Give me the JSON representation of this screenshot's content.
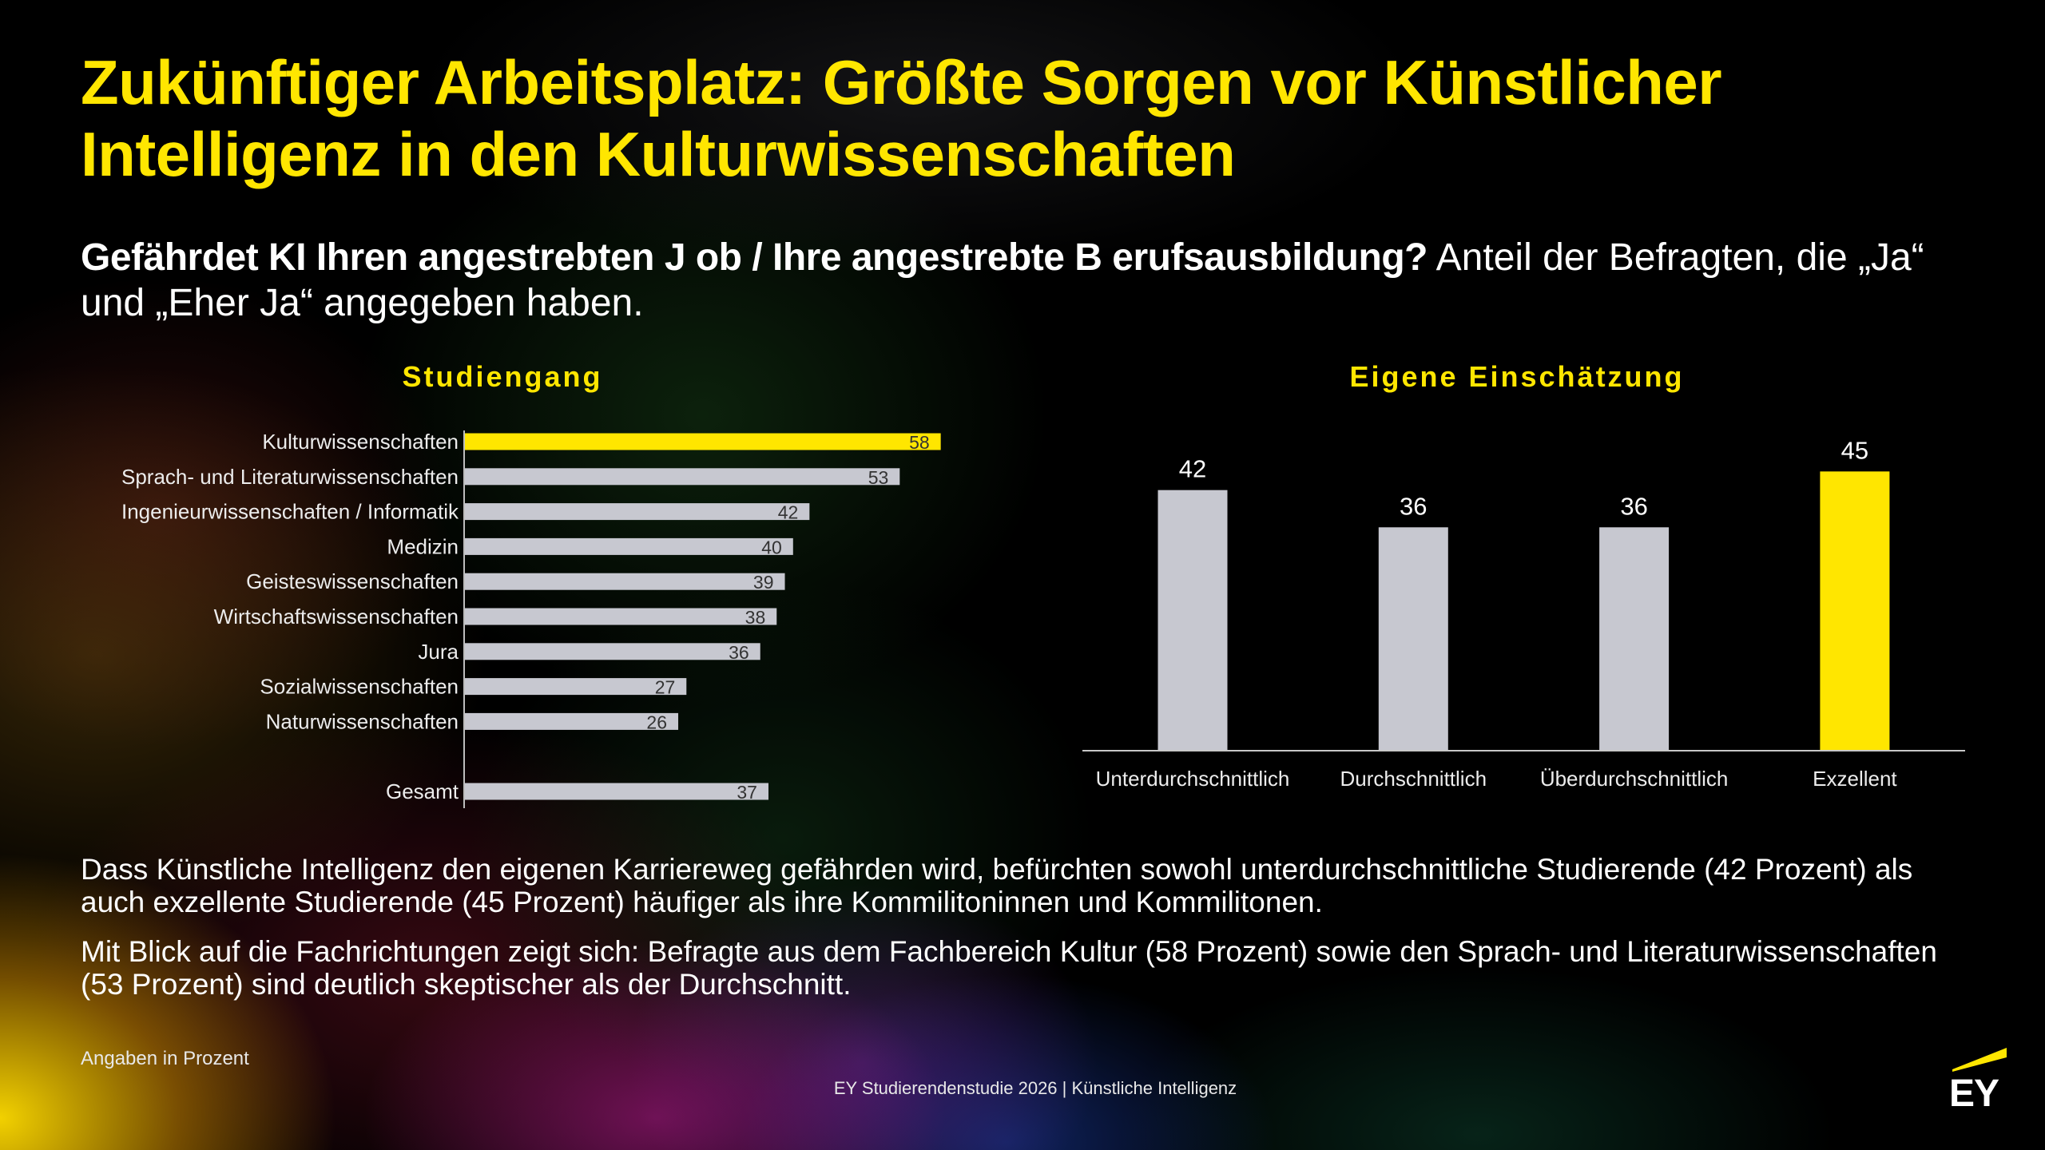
{
  "slide": {
    "title": "Zukünftiger Arbeitsplatz: Größte Sorgen vor Künstlicher Intelligenz in den Kulturwissenschaften",
    "question": "Gefährdet KI Ihren angestrebten J ob / Ihre angestrebte B erufsausbildung?",
    "question_note": "Anteil der Befragten, die „Ja“ und „Eher Ja“ angegeben haben.",
    "paragraphs": [
      "Dass Künstliche Intelligenz den eigenen Karriereweg gefährden wird, befürchten sowohl unterdurchschnittliche Studierende (42 Prozent) als auch exzellente Studierende (45 Prozent) häufiger als ihre Kommilitoninnen und Kommilitonen.",
      "Mit Blick auf die Fachrichtungen zeigt sich: Befragte aus dem Fachbereich Kultur (58 Prozent) sowie den Sprach- und Literaturwissenschaften (53 Prozent) sind deutlich skeptischer als der Durchschnitt."
    ],
    "unit_note": "Angaben in Prozent",
    "footer": "EY Studierendenstudie 2026 | Künstliche Intelligenz",
    "logo_text": "EY"
  },
  "colors": {
    "background": "#000000",
    "accent": "#FFE600",
    "text": "#FFFFFF",
    "bar_default": "#C7C8D0",
    "value_label_dark": "#333333"
  },
  "chart_data": [
    {
      "type": "bar",
      "orientation": "horizontal",
      "title": "Studiengang",
      "categories": [
        "Kulturwissenschaften",
        "Sprach- und Literaturwissenschaften",
        "Ingenieurwissenschaften / Informatik",
        "Medizin",
        "Geisteswissenschaften",
        "Wirtschaftswissenschaften",
        "Jura",
        "Sozialwissenschaften",
        "Naturwissenschaften",
        "Gesamt"
      ],
      "values": [
        58,
        53,
        42,
        40,
        39,
        38,
        36,
        27,
        26,
        37
      ],
      "highlight": "Kulturwissenschaften",
      "bar_color": "#C7C8D0",
      "highlight_color": "#FFE600",
      "grid": false
    },
    {
      "type": "bar",
      "orientation": "vertical",
      "title": "Eigene Einschätzung",
      "categories": [
        "Unterdurchschnittlich",
        "Durchschnittlich",
        "Überdurchschnittlich",
        "Exzellent"
      ],
      "values": [
        42,
        36,
        36,
        45
      ],
      "highlight": "Exzellent",
      "bar_color": "#C7C8D0",
      "highlight_color": "#FFE600",
      "grid": false
    }
  ]
}
